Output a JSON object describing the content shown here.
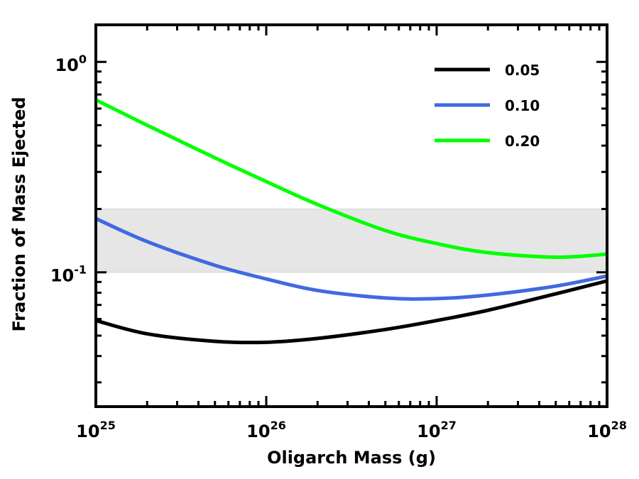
{
  "chart_data": {
    "type": "line",
    "title": "",
    "xlabel": "Oligarch Mass (g)",
    "ylabel": "Fraction of Mass Ejected",
    "xscale": "log",
    "yscale": "log",
    "xlim": [
      1e+25,
      1e+28
    ],
    "ylim": [
      0.023,
      1.5
    ],
    "x_ticks": [
      {
        "base": "10",
        "exp": "25",
        "value": 1e+25
      },
      {
        "base": "10",
        "exp": "26",
        "value": 1e+26
      },
      {
        "base": "10",
        "exp": "27",
        "value": 1e+27
      },
      {
        "base": "10",
        "exp": "28",
        "value": 1e+28
      }
    ],
    "y_ticks": [
      {
        "base": "10",
        "exp": "-1",
        "value": 0.1
      },
      {
        "base": "10",
        "exp": "0",
        "value": 1
      }
    ],
    "shaded_band": {
      "y_range": [
        0.1,
        0.2
      ],
      "color": "#e6e6e6"
    },
    "legend_position": "top-right",
    "x": [
      1e+25,
      2e+25,
      5e+25,
      1e+26,
      2e+26,
      5e+26,
      1e+27,
      2e+27,
      5e+27,
      1e+28
    ],
    "series": [
      {
        "name": "0.05",
        "color": "#000000",
        "values": [
          0.059,
          0.051,
          0.047,
          0.0465,
          0.0485,
          0.0535,
          0.059,
          0.066,
          0.079,
          0.091
        ]
      },
      {
        "name": "0.10",
        "color": "#4169e1",
        "values": [
          0.18,
          0.14,
          0.108,
          0.093,
          0.082,
          0.0755,
          0.075,
          0.078,
          0.086,
          0.096
        ]
      },
      {
        "name": "0.20",
        "color": "#00ff00",
        "values": [
          0.66,
          0.5,
          0.35,
          0.27,
          0.21,
          0.158,
          0.137,
          0.124,
          0.118,
          0.122
        ]
      }
    ]
  }
}
